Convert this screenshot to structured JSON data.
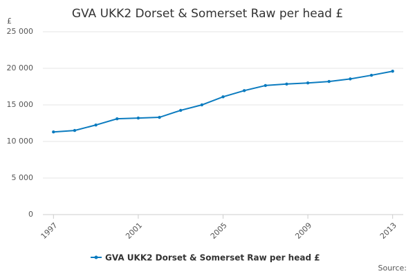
{
  "chart_data": {
    "type": "line",
    "title": "GVA UKK2 Dorset & Somerset Raw per head £",
    "y_label": "£",
    "source": "Source:",
    "x": [
      1997,
      1998,
      1999,
      2000,
      2001,
      2002,
      2003,
      2004,
      2005,
      2006,
      2007,
      2008,
      2009,
      2010,
      2011,
      2012,
      2013
    ],
    "series": [
      {
        "name": "GVA UKK2 Dorset & Somerset Raw per head £",
        "color": "#0b7bbf",
        "values": [
          11300,
          11500,
          12250,
          13100,
          13200,
          13300,
          14250,
          15000,
          16100,
          16950,
          17650,
          17850,
          18000,
          18200,
          18550,
          19050,
          19600
        ]
      }
    ],
    "xlim": [
      1996.5,
      2013.5
    ],
    "xticks": [
      1997,
      2001,
      2005,
      2009,
      2013
    ],
    "ylim": [
      0,
      25000
    ],
    "yticks": [
      0,
      {
        "value": 5000,
        "label": "5 000"
      },
      {
        "value": 10000,
        "label": "10 000"
      },
      {
        "value": 15000,
        "label": "15 000"
      },
      {
        "value": 20000,
        "label": "20 000"
      },
      {
        "value": 25000,
        "label": "25 000"
      }
    ],
    "grid": true
  }
}
